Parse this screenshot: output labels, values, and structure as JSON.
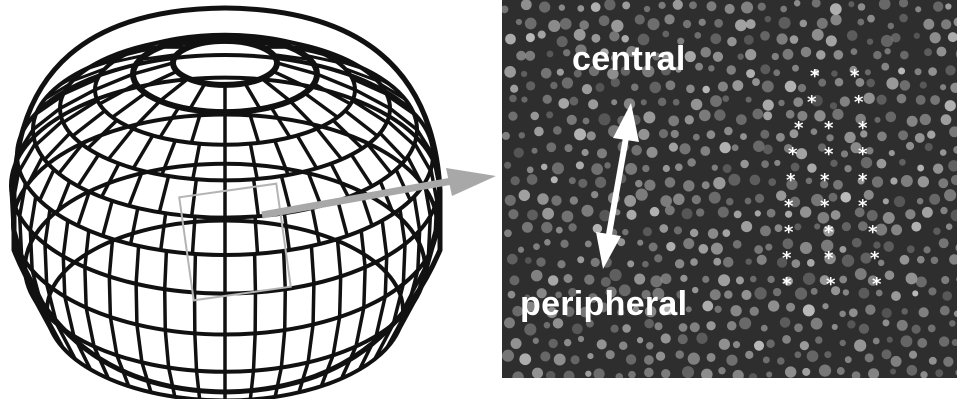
{
  "micrograph": {
    "label_top": "central",
    "label_bottom": "peripheral",
    "marker_symbol": "*",
    "marker_rows": [
      [
        "*",
        "*"
      ],
      [
        "*",
        "*"
      ],
      [
        "*",
        "*",
        "*"
      ],
      [
        "*",
        "*",
        "*"
      ],
      [
        "*",
        "*",
        "*"
      ],
      [
        "*",
        "*",
        "*"
      ],
      [
        "*",
        "*",
        "*"
      ],
      [
        "*",
        "*",
        "*"
      ],
      [
        "*",
        "*",
        "*"
      ]
    ]
  },
  "colors": {
    "dome_stroke": "#111111",
    "dome_fill": "#ffffff",
    "selection_box": "#b4b4b4",
    "connector_arrow": "#a8a8a8",
    "panel_background": "#2e2e2e",
    "cell_spots": "#9a9a9a",
    "label_text": "#ffffff"
  },
  "icons": {
    "connector": "zoom-arrow-icon",
    "direction": "double-headed-arrow-icon"
  }
}
